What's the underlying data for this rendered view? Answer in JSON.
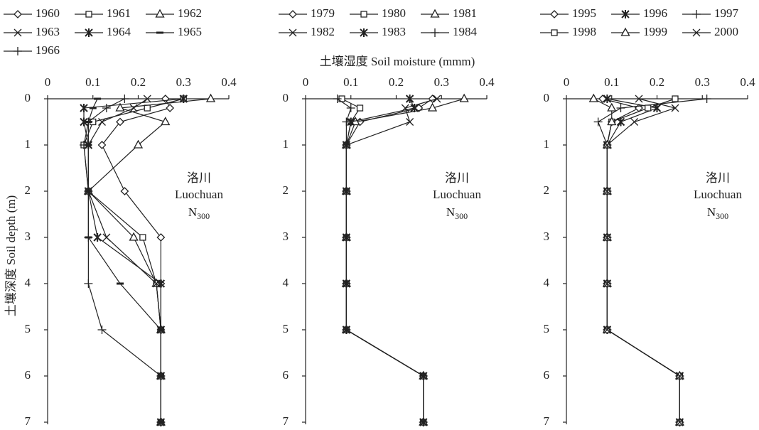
{
  "chart_data": [
    {
      "type": "line",
      "ylabel": "土壤深度 Soil depth (m)",
      "annotation": {
        "place": "洛川",
        "site": "Luochuan",
        "treatment": "N",
        "subscript": "300"
      },
      "y": [
        0,
        0.2,
        0.5,
        1,
        2,
        3,
        4,
        5,
        6,
        7
      ],
      "xlim": [
        0,
        0.4
      ],
      "xticks": [
        0,
        0.1,
        0.2,
        0.3,
        0.4
      ],
      "ylim": [
        0,
        7
      ],
      "yticks": [
        0,
        1,
        2,
        3,
        4,
        5,
        6,
        7
      ],
      "y_inverted": true,
      "series": [
        {
          "name": "1960",
          "marker": "diamond",
          "color": "#222",
          "values": [
            0.26,
            0.27,
            0.16,
            0.12,
            0.17,
            0.25,
            0.25,
            0.25,
            0.25,
            0.25
          ]
        },
        {
          "name": "1961",
          "marker": "square",
          "color": "#222",
          "values": [
            0.3,
            0.22,
            0.1,
            0.08,
            0.09,
            0.21,
            0.24,
            0.25,
            0.25,
            0.25
          ]
        },
        {
          "name": "1962",
          "marker": "triangle",
          "color": "#222",
          "values": [
            0.36,
            0.16,
            0.26,
            0.2,
            0.09,
            0.19,
            0.24,
            0.25,
            0.25,
            0.25
          ]
        },
        {
          "name": "1963",
          "marker": "x",
          "color": "#222",
          "values": [
            0.22,
            0.19,
            0.12,
            0.09,
            0.09,
            0.13,
            0.24,
            0.25,
            0.25,
            0.25
          ]
        },
        {
          "name": "1964",
          "marker": "asterisk",
          "color": "#222",
          "values": [
            0.3,
            0.08,
            0.08,
            0.09,
            0.09,
            0.11,
            0.25,
            0.25,
            0.25,
            0.25
          ]
        },
        {
          "name": "1965",
          "marker": "dash",
          "color": "#222",
          "values": [
            0.11,
            0.1,
            0.09,
            0.09,
            0.09,
            0.09,
            0.16,
            0.25,
            0.25,
            0.25
          ]
        },
        {
          "name": "1966",
          "marker": "plus",
          "color": "#222",
          "values": [
            0.17,
            0.13,
            0.09,
            0.08,
            0.09,
            0.09,
            0.09,
            0.12,
            0.25,
            0.25
          ]
        }
      ]
    },
    {
      "type": "line",
      "xlabel": "土壤湿度 Soil moisture (mmm)",
      "annotation": {
        "place": "洛川",
        "site": "Luochuan",
        "treatment": "N",
        "subscript": "300"
      },
      "y": [
        0,
        0.2,
        0.5,
        1,
        2,
        3,
        4,
        5,
        6,
        7
      ],
      "xlim": [
        0,
        0.4
      ],
      "xticks": [
        0,
        0.1,
        0.2,
        0.3,
        0.4
      ],
      "ylim": [
        0,
        7
      ],
      "yticks": [
        0,
        1,
        2,
        3,
        4,
        5,
        6,
        7
      ],
      "y_inverted": true,
      "series": [
        {
          "name": "1979",
          "marker": "diamond",
          "color": "#222",
          "values": [
            0.28,
            0.25,
            0.12,
            0.09,
            0.09,
            0.09,
            0.09,
            0.09,
            0.26,
            0.26
          ]
        },
        {
          "name": "1980",
          "marker": "square",
          "color": "#222",
          "values": [
            0.08,
            0.12,
            0.1,
            0.09,
            0.09,
            0.09,
            0.09,
            0.09,
            0.26,
            0.26
          ]
        },
        {
          "name": "1981",
          "marker": "triangle",
          "color": "#222",
          "values": [
            0.35,
            0.28,
            0.11,
            0.09,
            0.09,
            0.09,
            0.09,
            0.09,
            0.26,
            0.26
          ]
        },
        {
          "name": "1982",
          "marker": "x",
          "color": "#222",
          "values": [
            0.29,
            0.22,
            0.23,
            0.09,
            0.09,
            0.09,
            0.09,
            0.09,
            0.26,
            0.26
          ]
        },
        {
          "name": "1983",
          "marker": "asterisk",
          "color": "#222",
          "values": [
            0.23,
            0.24,
            0.1,
            0.09,
            0.09,
            0.09,
            0.09,
            0.09,
            0.26,
            0.26
          ]
        },
        {
          "name": "1984",
          "marker": "plus",
          "color": "#222",
          "values": [
            0.07,
            0.1,
            0.09,
            0.09,
            0.09,
            0.09,
            0.09,
            0.09,
            0.26,
            0.26
          ]
        }
      ]
    },
    {
      "type": "line",
      "annotation": {
        "place": "洛川",
        "site": "Luochuan",
        "treatment": "N",
        "subscript": "300"
      },
      "y": [
        0,
        0.2,
        0.5,
        1,
        2,
        3,
        4,
        5,
        6,
        7
      ],
      "xlim": [
        0,
        0.4
      ],
      "xticks": [
        0,
        0.1,
        0.2,
        0.3,
        0.4
      ],
      "ylim": [
        0,
        7
      ],
      "yticks": [
        0,
        1,
        2,
        3,
        4,
        5,
        6,
        7
      ],
      "y_inverted": true,
      "series": [
        {
          "name": "1995",
          "marker": "diamond",
          "color": "#222",
          "values": [
            0.08,
            0.16,
            0.1,
            0.09,
            0.09,
            0.09,
            0.09,
            0.09,
            0.25,
            0.25
          ]
        },
        {
          "name": "1996",
          "marker": "asterisk",
          "color": "#222",
          "values": [
            0.09,
            0.2,
            0.12,
            0.09,
            0.09,
            0.09,
            0.09,
            0.09,
            0.25,
            0.25
          ]
        },
        {
          "name": "1997",
          "marker": "plus",
          "color": "#222",
          "values": [
            0.31,
            0.12,
            0.07,
            0.09,
            0.09,
            0.09,
            0.09,
            0.09,
            0.25,
            0.25
          ]
        },
        {
          "name": "1998",
          "marker": "square",
          "color": "#222",
          "values": [
            0.24,
            0.18,
            0.1,
            0.09,
            0.09,
            0.09,
            0.09,
            0.09,
            0.25,
            0.25
          ]
        },
        {
          "name": "1999",
          "marker": "triangle",
          "color": "#222",
          "values": [
            0.06,
            0.1,
            0.1,
            0.09,
            0.09,
            0.09,
            0.09,
            0.09,
            0.25,
            0.25
          ]
        },
        {
          "name": "2000",
          "marker": "x",
          "color": "#222",
          "values": [
            0.16,
            0.24,
            0.15,
            0.09,
            0.09,
            0.09,
            0.09,
            0.09,
            0.25,
            0.25
          ]
        }
      ]
    }
  ]
}
